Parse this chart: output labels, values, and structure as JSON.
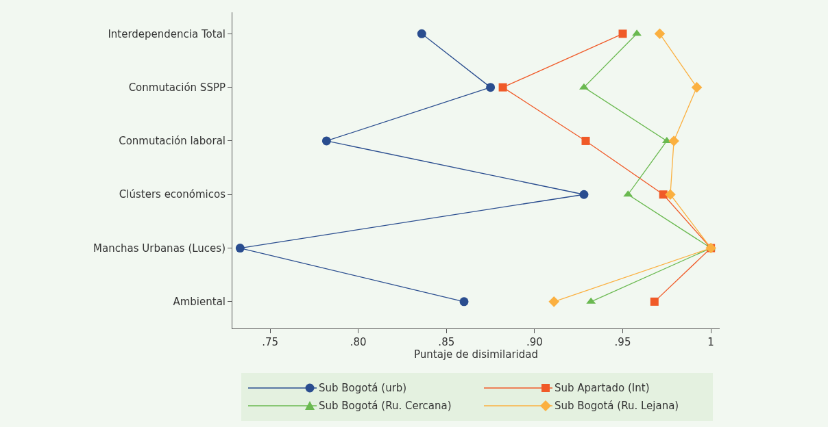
{
  "chart_data": {
    "type": "line",
    "orientation": "horizontal",
    "xlabel": "Puntaje de disimilaridad",
    "categories": [
      "Interdependencia Total",
      "Conmutación SSPP",
      "Conmutación laboral",
      "Clústers económicos",
      "Manchas Urbanas (Luces)",
      "Ambiental"
    ],
    "xlim": [
      0.7286,
      1.005
    ],
    "xticks": [
      {
        "value": 0.75,
        "label": ".75"
      },
      {
        "value": 0.8,
        "label": ".80"
      },
      {
        "value": 0.85,
        "label": ".85"
      },
      {
        "value": 0.9,
        "label": ".90"
      },
      {
        "value": 0.95,
        "label": ".95"
      },
      1
    ],
    "grid": false,
    "legend": "bottom",
    "series": [
      {
        "name": "Sub Bogotá (urb)",
        "color": "#2a4d8f",
        "marker": "circle",
        "values": [
          0.836,
          0.875,
          0.782,
          0.928,
          0.733,
          0.86
        ]
      },
      {
        "name": "Sub Apartado (Int)",
        "color": "#f05a28",
        "marker": "square",
        "values": [
          0.95,
          0.882,
          0.929,
          0.973,
          1.0,
          0.968
        ]
      },
      {
        "name": "Sub Bogotá (Ru. Cercana)",
        "color": "#6ab950",
        "marker": "triangle",
        "values": [
          0.958,
          0.928,
          0.975,
          0.953,
          1.0,
          0.932
        ]
      },
      {
        "name": "Sub Bogotá (Ru. Lejana)",
        "color": "#fbb040",
        "marker": "diamond",
        "values": [
          0.971,
          0.992,
          0.979,
          0.977,
          1.0,
          0.911
        ]
      }
    ]
  }
}
